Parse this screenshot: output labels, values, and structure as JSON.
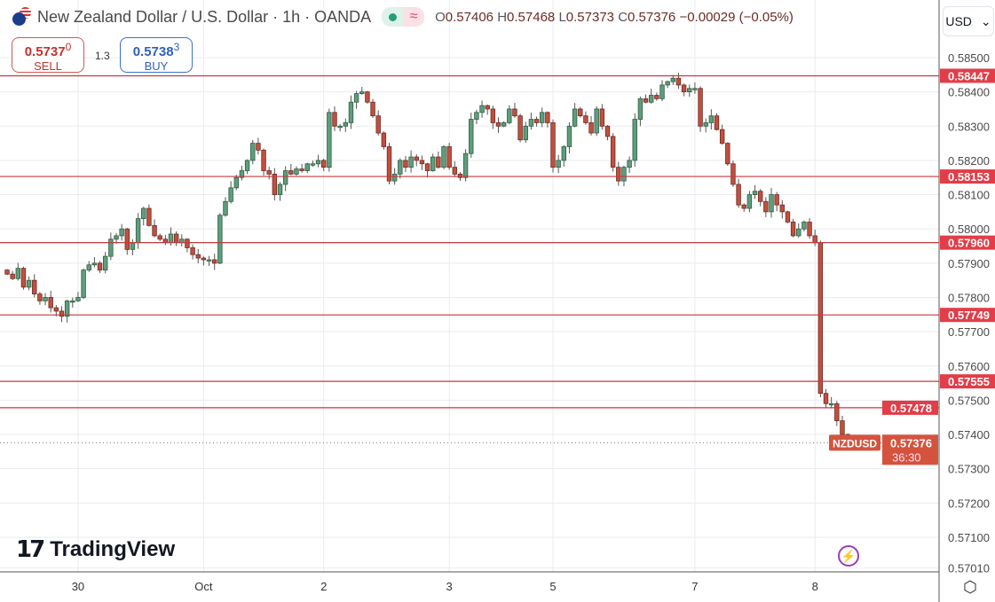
{
  "header": {
    "title": "New Zealand Dollar / U.S. Dollar · 1h · OANDA",
    "ohlc": {
      "o_label": "O",
      "o": "0.57406",
      "h_label": "H",
      "h": "0.57468",
      "l_label": "L",
      "l": "0.57373",
      "c_label": "C",
      "c": "0.57376",
      "change": "−0.00029 (−0.05%)"
    },
    "market_status_icon": "market-open-dot-icon",
    "wave_icon": "≈"
  },
  "trade": {
    "sell_price": "0.5737",
    "sell_sup": "0",
    "sell_label": "SELL",
    "spread": "1.3",
    "buy_price": "0.5738",
    "buy_sup": "3",
    "buy_label": "BUY"
  },
  "currency": {
    "selected": "USD"
  },
  "logo": {
    "text": "TradingView",
    "mark": "17"
  },
  "colors": {
    "up": "#5f9e7c",
    "up_border": "#2f5c44",
    "down": "#c1503f",
    "down_border": "#6e2a22",
    "level_line": "#c4393f",
    "level_label": "#e23d48",
    "current_label": "#d5533d",
    "grid": "#e9ebef"
  },
  "chart_data": {
    "type": "candlestick",
    "symbol": "NZDUSD",
    "timeframe": "1h",
    "ylim": [
      0.57,
      0.5855
    ],
    "y_ticks": [
      "0.58500",
      "0.58400",
      "0.58300",
      "0.58200",
      "0.58100",
      "0.58000",
      "0.57900",
      "0.57800",
      "0.57700",
      "0.57600",
      "0.57500",
      "0.57400",
      "0.57300",
      "0.57200",
      "0.57100",
      "0.57010"
    ],
    "x_ticks": [
      {
        "label": "30",
        "index": 13
      },
      {
        "label": "Oct",
        "index": 36
      },
      {
        "label": "2",
        "index": 58
      },
      {
        "label": "3",
        "index": 81
      },
      {
        "label": "5",
        "index": 100
      },
      {
        "label": "7",
        "index": 126
      },
      {
        "label": "8",
        "index": 148
      }
    ],
    "levels": [
      "0.58447",
      "0.58153",
      "0.57960",
      "0.57749",
      "0.57555",
      "0.57478"
    ],
    "current": {
      "symbol_label": "NZDUSD",
      "price": "0.57376",
      "countdown": "36:30"
    },
    "open_first": 0.5788,
    "closes": [
      0.57868,
      0.57855,
      0.57885,
      0.5783,
      0.5785,
      0.5781,
      0.5779,
      0.578,
      0.5777,
      0.5776,
      0.57745,
      0.5779,
      0.5779,
      0.578,
      0.5788,
      0.57895,
      0.579,
      0.5788,
      0.5792,
      0.5797,
      0.5798,
      0.58,
      0.5794,
      0.5796,
      0.5803,
      0.5806,
      0.5801,
      0.5798,
      0.5797,
      0.5796,
      0.57985,
      0.5796,
      0.5797,
      0.57945,
      0.57925,
      0.57915,
      0.5791,
      0.5791,
      0.579,
      0.5804,
      0.5808,
      0.5812,
      0.5815,
      0.5817,
      0.582,
      0.5825,
      0.5823,
      0.5817,
      0.5816,
      0.581,
      0.5813,
      0.5817,
      0.5816,
      0.58175,
      0.5817,
      0.5819,
      0.5819,
      0.582,
      0.5818,
      0.5834,
      0.583,
      0.583,
      0.5831,
      0.5837,
      0.58395,
      0.584,
      0.5837,
      0.5833,
      0.5828,
      0.5824,
      0.5814,
      0.5816,
      0.582,
      0.5818,
      0.5821,
      0.582,
      0.5819,
      0.5817,
      0.5821,
      0.5818,
      0.5824,
      0.5818,
      0.5816,
      0.5815,
      0.5822,
      0.5832,
      0.5834,
      0.5836,
      0.5835,
      0.5831,
      0.583,
      0.5831,
      0.5835,
      0.5833,
      0.5826,
      0.583,
      0.5832,
      0.5831,
      0.5834,
      0.5831,
      0.5818,
      0.582,
      0.5824,
      0.583,
      0.5835,
      0.5833,
      0.5831,
      0.5828,
      0.5835,
      0.583,
      0.5827,
      0.5818,
      0.5814,
      0.5818,
      0.582,
      0.5832,
      0.5838,
      0.5837,
      0.5839,
      0.5838,
      0.5842,
      0.5843,
      0.5844,
      0.5842,
      0.584,
      0.5841,
      0.5841,
      0.583,
      0.5831,
      0.5833,
      0.5829,
      0.5825,
      0.5819,
      0.5813,
      0.5807,
      0.5806,
      0.581,
      0.5811,
      0.5808,
      0.5805,
      0.581,
      0.5807,
      0.5805,
      0.5802,
      0.5798,
      0.58,
      0.5802,
      0.5798,
      0.5796,
      0.5752,
      0.5749,
      0.5749,
      0.5744,
      0.574,
      0.57376
    ]
  }
}
